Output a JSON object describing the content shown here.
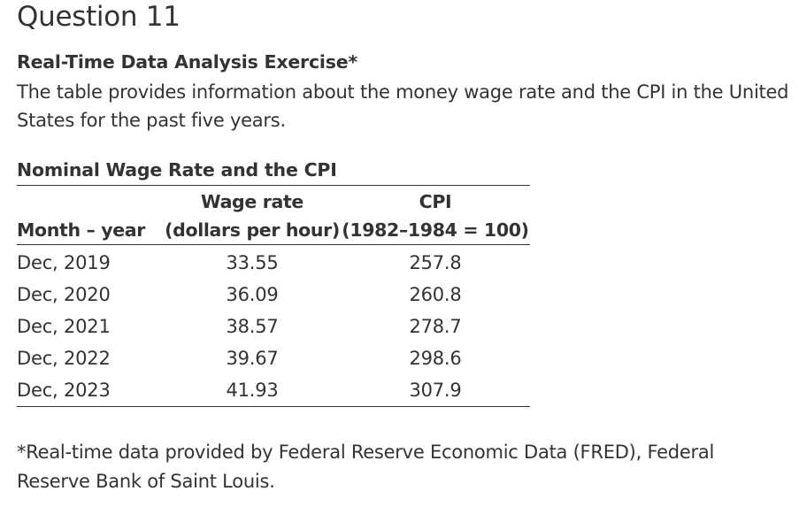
{
  "question": {
    "title": "Question 11"
  },
  "exercise": {
    "heading": "Real-Time Data Analysis Exercise*",
    "intro": "The table provides information about the money wage rate and the CPI in the United States for the past five years."
  },
  "table": {
    "caption": "Nominal Wage Rate and the CPI",
    "headers": {
      "month_top": "",
      "month_bottom": "Month – year",
      "wage_top": "Wage rate",
      "wage_bottom": "(dollars per hour)",
      "cpi_top": "CPI",
      "cpi_bottom": "(1982–1984 = 100)"
    },
    "rows": [
      {
        "month": "Dec, 2019",
        "wage": "33.55",
        "cpi": "257.8"
      },
      {
        "month": "Dec, 2020",
        "wage": "36.09",
        "cpi": "260.8"
      },
      {
        "month": "Dec, 2021",
        "wage": "38.57",
        "cpi": "278.7"
      },
      {
        "month": "Dec, 2022",
        "wage": "39.67",
        "cpi": "298.6"
      },
      {
        "month": "Dec, 2023",
        "wage": "41.93",
        "cpi": "307.9"
      }
    ]
  },
  "footnote": {
    "text": "*Real-time data provided by Federal Reserve Economic Data (FRED), Federal Reserve Bank of Saint Louis."
  }
}
